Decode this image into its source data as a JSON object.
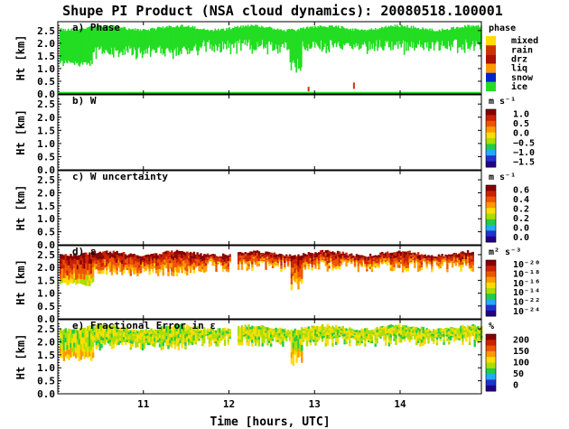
{
  "figure": {
    "title": "Shupe PI Product (NSA cloud dynamics): 20080518.100001",
    "xlabel": "Time [hours, UTC]"
  },
  "colors": {
    "ice": "#22dd22",
    "mixed": "#ffdd00",
    "rain": "#cc3300",
    "drz": "#aa1100",
    "liq": "#ff9900",
    "snow": "#0022cc"
  },
  "chart_data": [
    {
      "type": "heatmap",
      "title": "a) Phase",
      "ylabel": "Ht [km]",
      "yticks": [
        "2.5",
        "2.0",
        "1.5",
        "1.0",
        "0.5",
        "0.0"
      ],
      "xticks": [
        "11",
        "12",
        "13",
        "14"
      ],
      "xlim": [
        10.0,
        14.95
      ],
      "ylim": [
        0.0,
        2.85
      ],
      "colorbar": {
        "label": "phase",
        "categories": [
          "mixed",
          "rain",
          "drz",
          "liq",
          "snow",
          "ice"
        ]
      },
      "dominant_class": "ice",
      "approx_top_km": 2.65,
      "approx_base_km": [
        1.2,
        2.1
      ]
    },
    {
      "type": "heatmap",
      "title": "b) W",
      "ylabel": "Ht [km]",
      "yticks": [
        "2.5",
        "2.0",
        "1.5",
        "1.0",
        "0.5",
        "0.0"
      ],
      "xticks": [
        "11",
        "12",
        "13",
        "14"
      ],
      "empty": true,
      "colorbar": {
        "label": "m s⁻¹",
        "ticks": [
          "1.0",
          "0.5",
          "0.0",
          "−0.5",
          "−1.0",
          "−1.5"
        ]
      }
    },
    {
      "type": "heatmap",
      "title": "c) W uncertainty",
      "ylabel": "Ht [km]",
      "yticks": [
        "2.5",
        "2.0",
        "1.5",
        "1.0",
        "0.5",
        "0.0"
      ],
      "xticks": [
        "11",
        "12",
        "13",
        "14"
      ],
      "empty": true,
      "colorbar": {
        "label": "m s⁻¹",
        "ticks": [
          "0.6",
          "0.4",
          "0.2",
          "0.2",
          "0.0",
          "0.0"
        ]
      }
    },
    {
      "type": "heatmap",
      "title": "d) ε",
      "ylabel": "Ht [km]",
      "yticks": [
        "2.5",
        "2.0",
        "1.5",
        "1.0",
        "0.5",
        "0.0"
      ],
      "xticks": [
        "11",
        "12",
        "13",
        "14"
      ],
      "colorbar": {
        "label": "m² s⁻³",
        "ticks": [
          "10⁻²⁰",
          "10⁻¹⁸",
          "10⁻¹⁶",
          "10⁻¹⁴",
          "10⁻²²",
          "10⁻²⁴"
        ]
      }
    },
    {
      "type": "heatmap",
      "title": "e) Fractional Error in ε",
      "ylabel": "Ht [km]",
      "yticks": [
        "2.5",
        "2.0",
        "1.5",
        "1.0",
        "0.5",
        "0.0"
      ],
      "xticks": [
        "11",
        "12",
        "13",
        "14"
      ],
      "colorbar": {
        "label": "%",
        "ticks": [
          "200",
          "150",
          "100",
          "50",
          "0"
        ]
      }
    }
  ]
}
